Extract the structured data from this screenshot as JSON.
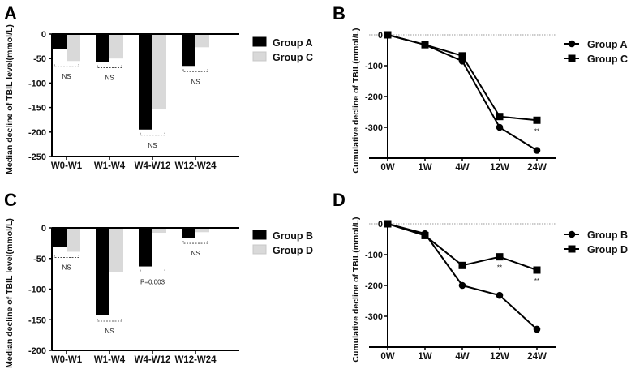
{
  "chart_data": [
    {
      "panel": "A",
      "type": "bar",
      "categories": [
        "W0-W1",
        "W1-W4",
        "W4-W12",
        "W12-W24"
      ],
      "series": [
        {
          "name": "Group A",
          "values": [
            -31,
            -57,
            -195,
            -65
          ],
          "color": "#000000"
        },
        {
          "name": "Group C",
          "values": [
            -55,
            -50,
            -154,
            -27
          ],
          "color": "#d9d9d9"
        }
      ],
      "ylabel": "Median decline of TBIL level(mmol/L)",
      "ylim": [
        -250,
        0
      ],
      "yticks": [
        "0",
        "-50",
        "-100",
        "-150",
        "-200",
        "-250"
      ],
      "annotations": [
        "NS",
        "NS",
        "NS",
        "NS"
      ],
      "legend": "right"
    },
    {
      "panel": "B",
      "type": "line",
      "x": [
        "0W",
        "1W",
        "4W",
        "12W",
        "24W"
      ],
      "series": [
        {
          "name": "Group A",
          "marker": "circle",
          "values": [
            0,
            -32,
            -85,
            -300,
            -375
          ]
        },
        {
          "name": "Group C",
          "marker": "square",
          "values": [
            0,
            -32,
            -68,
            -265,
            -277
          ]
        }
      ],
      "ylabel": "Cumulative decline of TBIL(mmol/L)",
      "ylim": [
        -400,
        0
      ],
      "yticks": [
        "0",
        "-100",
        "-200",
        "-300"
      ],
      "annotations": [
        {
          "x": "24W",
          "text": "**"
        }
      ],
      "legend": "right"
    },
    {
      "panel": "C",
      "type": "bar",
      "categories": [
        "W0-W1",
        "W1-W4",
        "W4-W12",
        "W12-W24"
      ],
      "series": [
        {
          "name": "Group B",
          "values": [
            -31,
            -143,
            -63,
            -16
          ],
          "color": "#000000"
        },
        {
          "name": "Group D",
          "values": [
            -39,
            -72,
            -8,
            -7
          ],
          "color": "#d9d9d9"
        }
      ],
      "ylabel": "Median decline of TBIL level(mmol/L)",
      "ylim": [
        -200,
        0
      ],
      "yticks": [
        "0",
        "-50",
        "-100",
        "-150",
        "-200"
      ],
      "annotations": [
        "NS",
        "NS",
        "P=0.003",
        "NS"
      ],
      "legend": "right"
    },
    {
      "panel": "D",
      "type": "line",
      "x": [
        "0W",
        "1W",
        "4W",
        "12W",
        "24W"
      ],
      "series": [
        {
          "name": "Group B",
          "marker": "circle",
          "values": [
            0,
            -32,
            -200,
            -232,
            -342
          ]
        },
        {
          "name": "Group D",
          "marker": "square",
          "values": [
            0,
            -38,
            -135,
            -107,
            -150
          ]
        }
      ],
      "ylabel": "Cumulative decline of TBIL(mmol/L)",
      "ylim": [
        -400,
        0
      ],
      "yticks": [
        "0",
        "-100",
        "-200",
        "-300"
      ],
      "annotations": [
        {
          "x": "12W",
          "text": "**"
        },
        {
          "x": "24W",
          "text": "**"
        }
      ],
      "legend": "right"
    }
  ]
}
